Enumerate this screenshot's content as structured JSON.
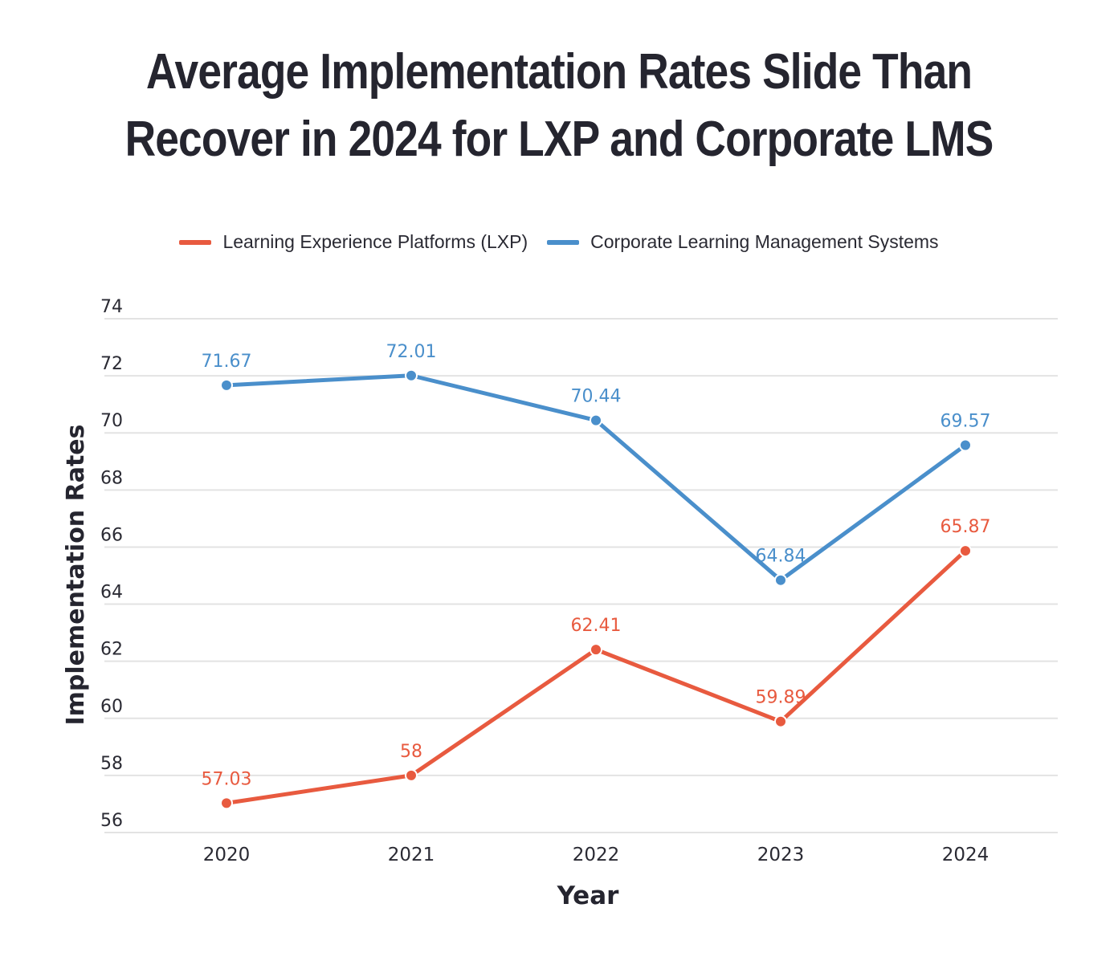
{
  "chart_data": {
    "type": "line",
    "title": "Average Implementation Rates Slide Than Recover in 2024 for LXP and Corporate LMS",
    "xlabel": "Year",
    "ylabel": "Implementation Rates",
    "categories": [
      "2020",
      "2021",
      "2022",
      "2023",
      "2024"
    ],
    "ylim": [
      56,
      74
    ],
    "yticks": [
      56,
      58,
      60,
      62,
      64,
      66,
      68,
      70,
      72,
      74
    ],
    "grid": true,
    "legend_position": "top-center",
    "series": [
      {
        "name": "Learning Experience Platforms (LXP)",
        "color": "#e85a3f",
        "values": [
          57.03,
          58,
          62.41,
          59.89,
          65.87
        ],
        "labels": [
          "57.03",
          "58",
          "62.41",
          "59.89",
          "65.87"
        ]
      },
      {
        "name": "Corporate Learning Management Systems",
        "color": "#4a8fcb",
        "values": [
          71.67,
          72.01,
          70.44,
          64.84,
          69.57
        ],
        "labels": [
          "71.67",
          "72.01",
          "70.44",
          "64.84",
          "69.57"
        ]
      }
    ]
  },
  "colors": {
    "title": "#25252f",
    "axis_text": "#2a2a33",
    "grid": "#e3e3e3"
  }
}
